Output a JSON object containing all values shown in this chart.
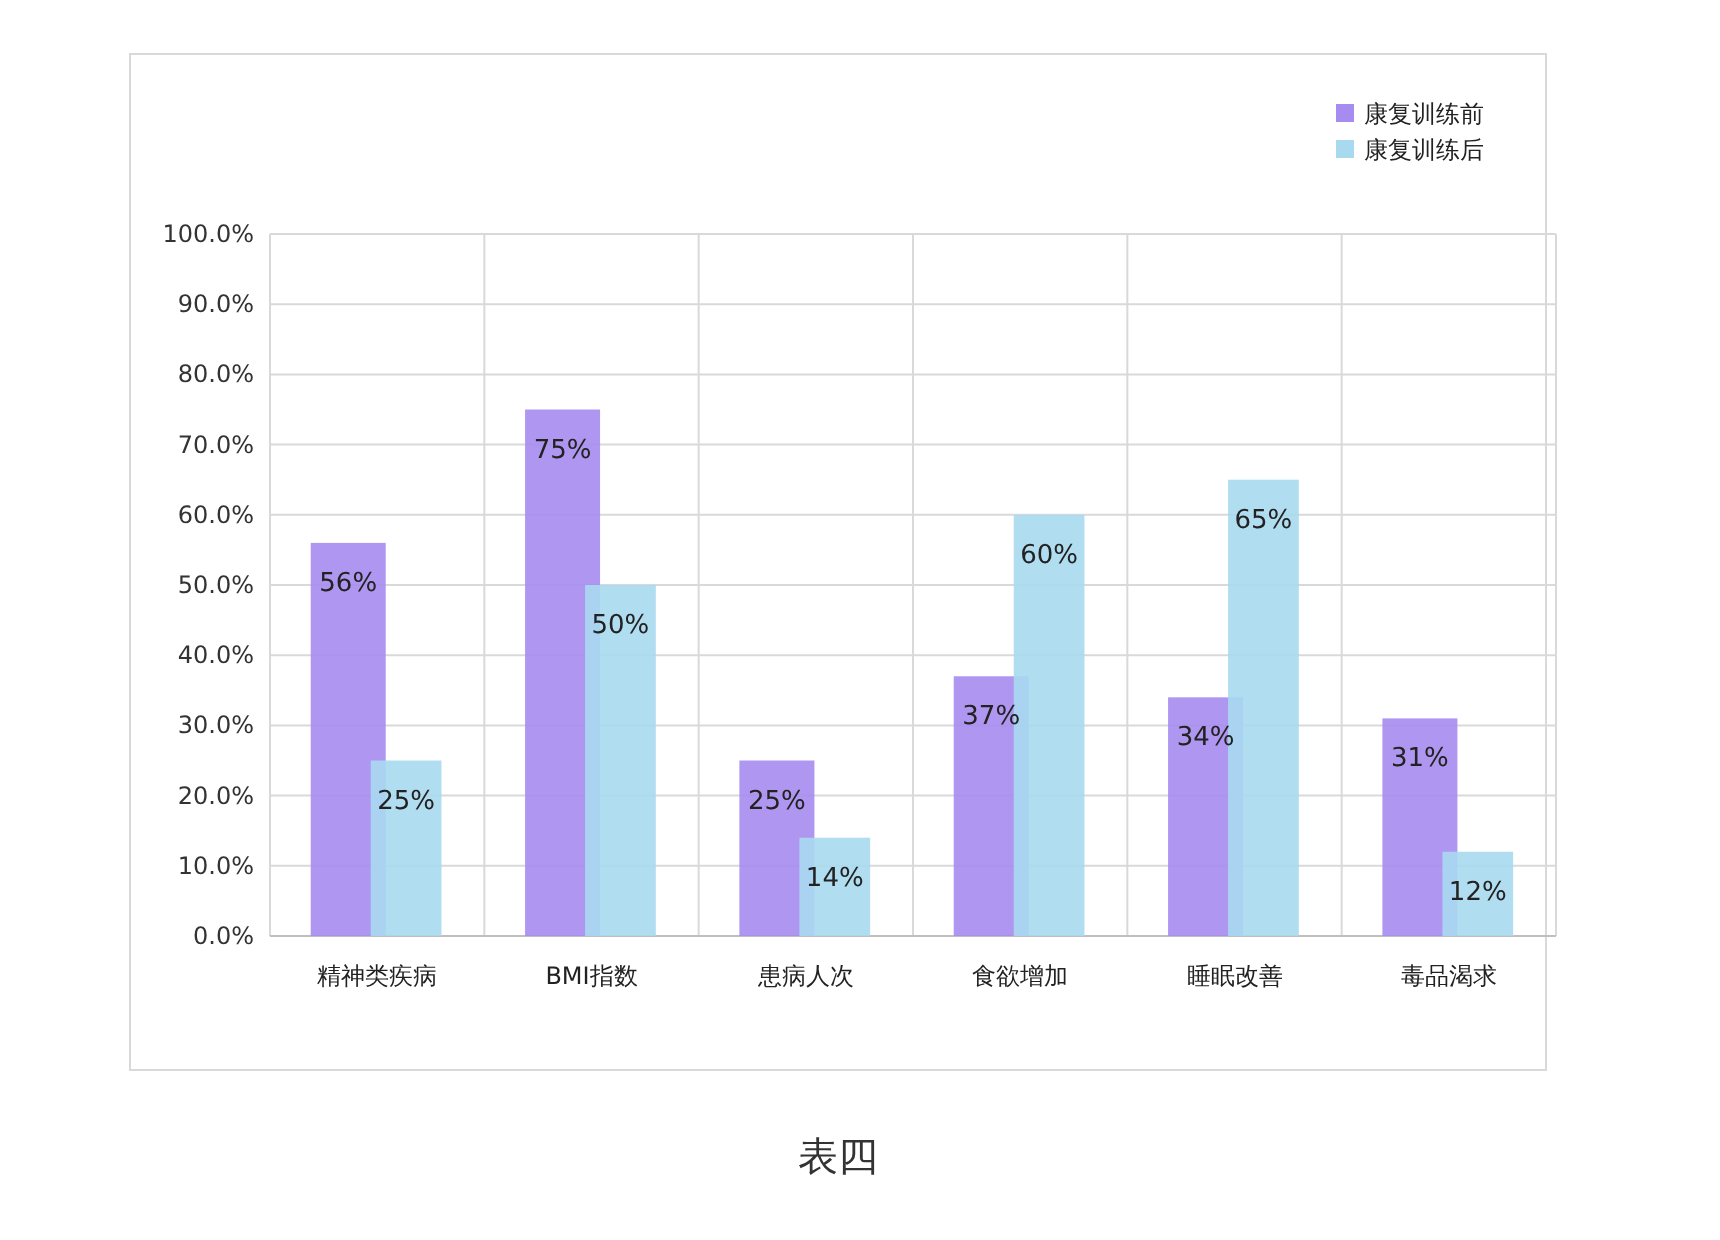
{
  "chart_data": {
    "type": "bar",
    "categories": [
      "精神类疾病",
      "BMI指数",
      "患病人次",
      "食欲增加",
      "睡眠改善",
      "毒品渴求"
    ],
    "series": [
      {
        "name": "康复训练前",
        "color": "#a68cf0",
        "values": [
          56,
          75,
          25,
          37,
          34,
          31
        ],
        "value_labels": [
          "56%",
          "75%",
          "25%",
          "37%",
          "34%",
          "31%"
        ]
      },
      {
        "name": "康复训练后",
        "color": "#a9d9ef",
        "values": [
          25,
          50,
          14,
          60,
          65,
          12
        ],
        "value_labels": [
          "25%",
          "50%",
          "14%",
          "60%",
          "65%",
          "12%"
        ]
      }
    ],
    "ylim": [
      0,
      100
    ],
    "yticks": [
      {
        "value": 0,
        "label": "0.0%"
      },
      {
        "value": 10,
        "label": "10.0%"
      },
      {
        "value": 20,
        "label": "20.0%"
      },
      {
        "value": 30,
        "label": "30.0%"
      },
      {
        "value": 40,
        "label": "40.0%"
      },
      {
        "value": 50,
        "label": "50.0%"
      },
      {
        "value": 60,
        "label": "60.0%"
      },
      {
        "value": 70,
        "label": "70.0%"
      },
      {
        "value": 80,
        "label": "80.0%"
      },
      {
        "value": 90,
        "label": "90.0%"
      },
      {
        "value": 100,
        "label": "100.0%"
      }
    ],
    "grid": true,
    "legend": "top right",
    "annotations": [
      "表四"
    ]
  }
}
